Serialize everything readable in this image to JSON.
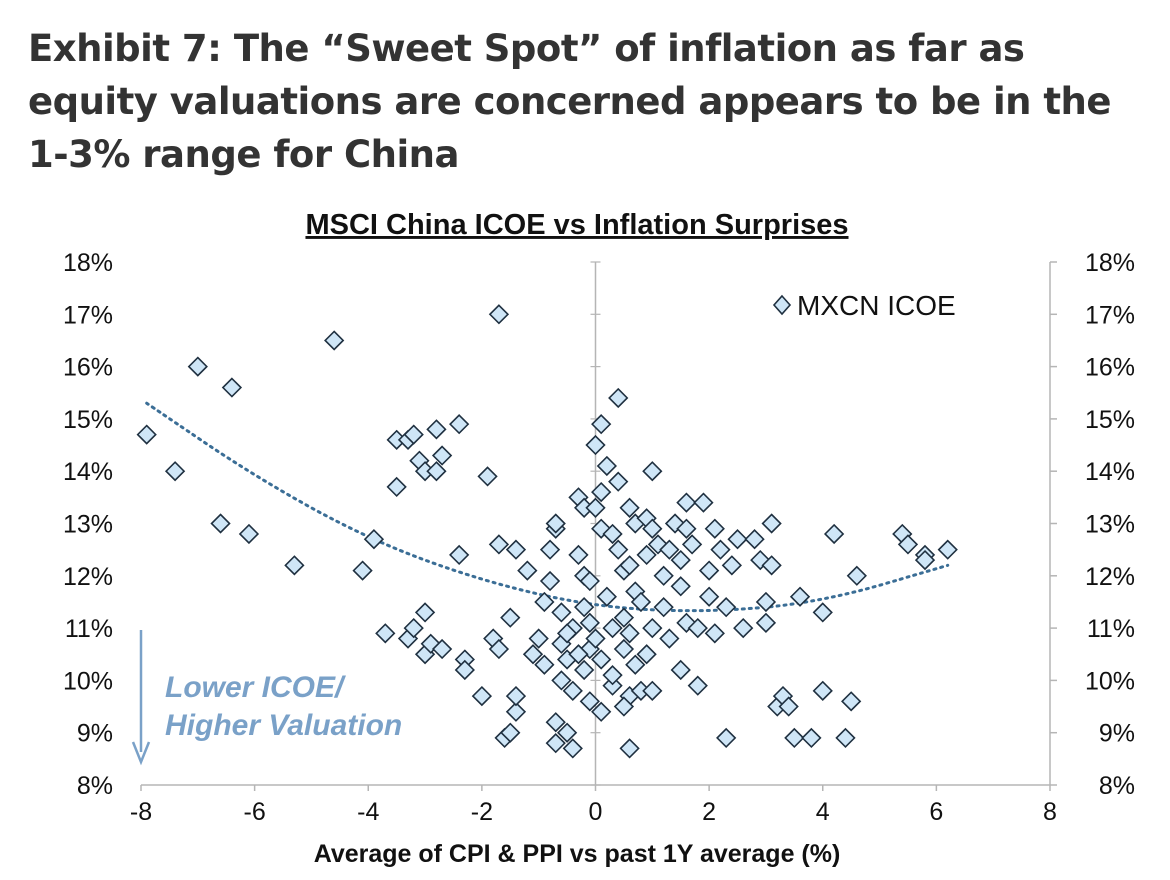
{
  "exhibit_title": "Exhibit 7: The “Sweet Spot” of inflation as far as equity valuations are concerned appears to be in the 1-3% range for China",
  "colors": {
    "marker_fill": "#cfe6f7",
    "marker_stroke": "#1f3040",
    "trendline": "#3b6e96",
    "annotation": "#7aa1c8"
  },
  "chart_data": {
    "type": "scatter",
    "title": "MSCI China ICOE vs Inflation Surprises",
    "xlabel": "Average of CPI & PPI vs past 1Y average (%)",
    "ylabel": "",
    "xlim": [
      -8,
      8
    ],
    "ylim": [
      8,
      18
    ],
    "x_ticks": [
      "-8",
      "-6",
      "-4",
      "-2",
      "0",
      "2",
      "4",
      "6",
      "8"
    ],
    "y_ticks": [
      "8%",
      "9%",
      "10%",
      "11%",
      "12%",
      "13%",
      "14%",
      "15%",
      "16%",
      "17%",
      "18%"
    ],
    "y_axis_right": true,
    "grid": false,
    "legend_position": "top-right",
    "annotation": [
      "Lower ICOE/",
      "Higher Valuation"
    ],
    "series": [
      {
        "name": "MXCN ICOE",
        "marker": "diamond",
        "points": [
          [
            -7.0,
            16.0
          ],
          [
            -6.4,
            15.6
          ],
          [
            -4.6,
            16.5
          ],
          [
            -1.7,
            17.0
          ],
          [
            0.4,
            15.4
          ],
          [
            -7.9,
            14.7
          ],
          [
            -7.4,
            14.0
          ],
          [
            -6.6,
            13.0
          ],
          [
            -6.1,
            12.8
          ],
          [
            -5.3,
            12.2
          ],
          [
            -4.1,
            12.1
          ],
          [
            -3.9,
            12.7
          ],
          [
            -3.7,
            10.9
          ],
          [
            -3.5,
            14.6
          ],
          [
            -3.5,
            13.7
          ],
          [
            -3.3,
            14.6
          ],
          [
            -3.2,
            14.7
          ],
          [
            -3.1,
            14.2
          ],
          [
            -3.0,
            14.0
          ],
          [
            -2.8,
            14.0
          ],
          [
            -2.8,
            14.8
          ],
          [
            -2.7,
            14.3
          ],
          [
            -2.4,
            14.9
          ],
          [
            -3.3,
            10.8
          ],
          [
            -3.2,
            11.0
          ],
          [
            -3.0,
            11.3
          ],
          [
            -3.0,
            10.5
          ],
          [
            -2.9,
            10.7
          ],
          [
            -2.7,
            10.6
          ],
          [
            -2.3,
            10.4
          ],
          [
            -2.3,
            10.2
          ],
          [
            -2.4,
            12.4
          ],
          [
            -2.0,
            9.7
          ],
          [
            -1.9,
            13.9
          ],
          [
            -1.8,
            10.8
          ],
          [
            -1.7,
            12.6
          ],
          [
            -1.7,
            10.6
          ],
          [
            -1.6,
            8.9
          ],
          [
            -1.5,
            9.0
          ],
          [
            -1.4,
            9.4
          ],
          [
            -1.4,
            9.7
          ],
          [
            -1.5,
            11.2
          ],
          [
            -1.4,
            12.5
          ],
          [
            -1.2,
            12.1
          ],
          [
            -1.1,
            10.5
          ],
          [
            -1.0,
            10.8
          ],
          [
            -0.9,
            10.3
          ],
          [
            -0.9,
            11.5
          ],
          [
            -0.8,
            11.9
          ],
          [
            -0.8,
            12.5
          ],
          [
            -0.7,
            12.9
          ],
          [
            -0.7,
            13.0
          ],
          [
            -0.7,
            9.2
          ],
          [
            -0.6,
            10.0
          ],
          [
            -0.6,
            10.7
          ],
          [
            -0.5,
            9.0
          ],
          [
            -0.5,
            10.4
          ],
          [
            -0.4,
            11.0
          ],
          [
            -0.4,
            9.8
          ],
          [
            -0.3,
            12.4
          ],
          [
            -0.3,
            13.5
          ],
          [
            -0.2,
            13.3
          ],
          [
            -0.2,
            12.0
          ],
          [
            -0.2,
            11.4
          ],
          [
            -0.1,
            10.6
          ],
          [
            -0.1,
            9.6
          ],
          [
            -0.1,
            11.9
          ],
          [
            0.0,
            13.3
          ],
          [
            0.1,
            12.9
          ],
          [
            0.1,
            13.6
          ],
          [
            0.1,
            14.9
          ],
          [
            0.1,
            10.4
          ],
          [
            0.0,
            14.5
          ],
          [
            0.2,
            14.1
          ],
          [
            0.3,
            12.8
          ],
          [
            0.3,
            11.0
          ],
          [
            0.3,
            9.9
          ],
          [
            0.4,
            13.8
          ],
          [
            0.4,
            12.5
          ],
          [
            0.5,
            12.1
          ],
          [
            0.5,
            11.2
          ],
          [
            0.5,
            10.6
          ],
          [
            0.6,
            13.3
          ],
          [
            0.6,
            12.2
          ],
          [
            0.6,
            10.9
          ],
          [
            0.6,
            9.7
          ],
          [
            0.7,
            13.0
          ],
          [
            0.7,
            11.7
          ],
          [
            0.7,
            10.3
          ],
          [
            0.8,
            9.8
          ],
          [
            0.8,
            11.5
          ],
          [
            0.9,
            13.1
          ],
          [
            0.9,
            12.4
          ],
          [
            0.9,
            10.5
          ],
          [
            1.0,
            14.0
          ],
          [
            1.0,
            12.9
          ],
          [
            1.0,
            11.0
          ],
          [
            1.0,
            9.8
          ],
          [
            1.1,
            12.6
          ],
          [
            1.2,
            12.0
          ],
          [
            1.2,
            11.4
          ],
          [
            1.3,
            10.8
          ],
          [
            1.3,
            12.5
          ],
          [
            1.4,
            13.0
          ],
          [
            1.5,
            12.3
          ],
          [
            1.5,
            11.8
          ],
          [
            1.5,
            10.2
          ],
          [
            1.6,
            12.9
          ],
          [
            1.6,
            11.1
          ],
          [
            1.6,
            13.4
          ],
          [
            1.7,
            12.6
          ],
          [
            1.8,
            11.0
          ],
          [
            1.8,
            9.9
          ],
          [
            1.9,
            13.4
          ],
          [
            2.0,
            12.1
          ],
          [
            2.0,
            11.6
          ],
          [
            2.1,
            12.9
          ],
          [
            2.1,
            10.9
          ],
          [
            2.2,
            12.5
          ],
          [
            2.3,
            11.4
          ],
          [
            2.4,
            12.2
          ],
          [
            2.5,
            12.7
          ],
          [
            2.6,
            11.0
          ],
          [
            2.3,
            8.9
          ],
          [
            2.8,
            12.7
          ],
          [
            2.9,
            12.3
          ],
          [
            3.0,
            11.5
          ],
          [
            3.0,
            11.1
          ],
          [
            3.1,
            13.0
          ],
          [
            3.1,
            12.2
          ],
          [
            3.2,
            9.5
          ],
          [
            3.3,
            9.7
          ],
          [
            3.4,
            9.5
          ],
          [
            3.5,
            8.9
          ],
          [
            3.8,
            8.9
          ],
          [
            3.6,
            11.6
          ],
          [
            4.0,
            11.3
          ],
          [
            4.0,
            9.8
          ],
          [
            4.2,
            12.8
          ],
          [
            4.4,
            8.9
          ],
          [
            4.5,
            9.6
          ],
          [
            4.6,
            12.0
          ],
          [
            5.4,
            12.8
          ],
          [
            5.5,
            12.6
          ],
          [
            5.8,
            12.4
          ],
          [
            5.8,
            12.3
          ],
          [
            6.2,
            12.5
          ],
          [
            -0.4,
            8.7
          ],
          [
            -0.7,
            8.8
          ],
          [
            0.6,
            8.7
          ],
          [
            0.1,
            9.4
          ],
          [
            0.5,
            9.5
          ],
          [
            0.3,
            10.1
          ],
          [
            -0.2,
            10.2
          ],
          [
            -0.5,
            10.9
          ],
          [
            -0.3,
            10.5
          ],
          [
            0.0,
            10.8
          ],
          [
            -0.1,
            11.1
          ],
          [
            0.2,
            11.6
          ],
          [
            -0.6,
            11.3
          ]
        ]
      },
      {
        "name": "",
        "type": "trendline",
        "style": "dotted",
        "points": [
          [
            -7.9,
            15.3
          ],
          [
            -6.0,
            13.9
          ],
          [
            -4.0,
            12.7
          ],
          [
            -2.0,
            11.9
          ],
          [
            0.0,
            11.4
          ],
          [
            2.0,
            11.3
          ],
          [
            4.0,
            11.5
          ],
          [
            6.2,
            12.2
          ]
        ]
      }
    ]
  }
}
